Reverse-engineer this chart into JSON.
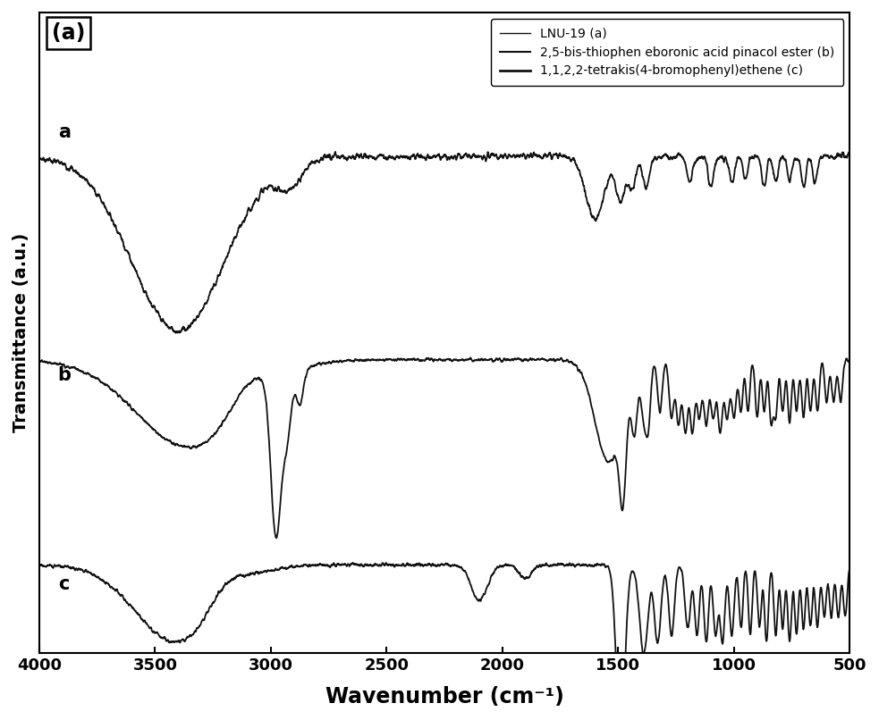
{
  "title": "(a)",
  "xlabel": "Wavenumber (cm⁻¹)",
  "ylabel": "Transmittance (a.u.)",
  "xlim": [
    4000,
    500
  ],
  "legend_entries": [
    "LNU-19 (a)",
    "2,5-bis-thiophen eboronic acid pinacol ester (b)",
    "1,1,2,2-tetrakis(4-bromophenyl)ethene (c)"
  ],
  "line_color": "#111111",
  "background_color": "#ffffff",
  "label_texts": [
    "a",
    "b",
    "c"
  ],
  "xticks": [
    4000,
    3500,
    3000,
    2500,
    2000,
    1500,
    1000,
    500
  ]
}
